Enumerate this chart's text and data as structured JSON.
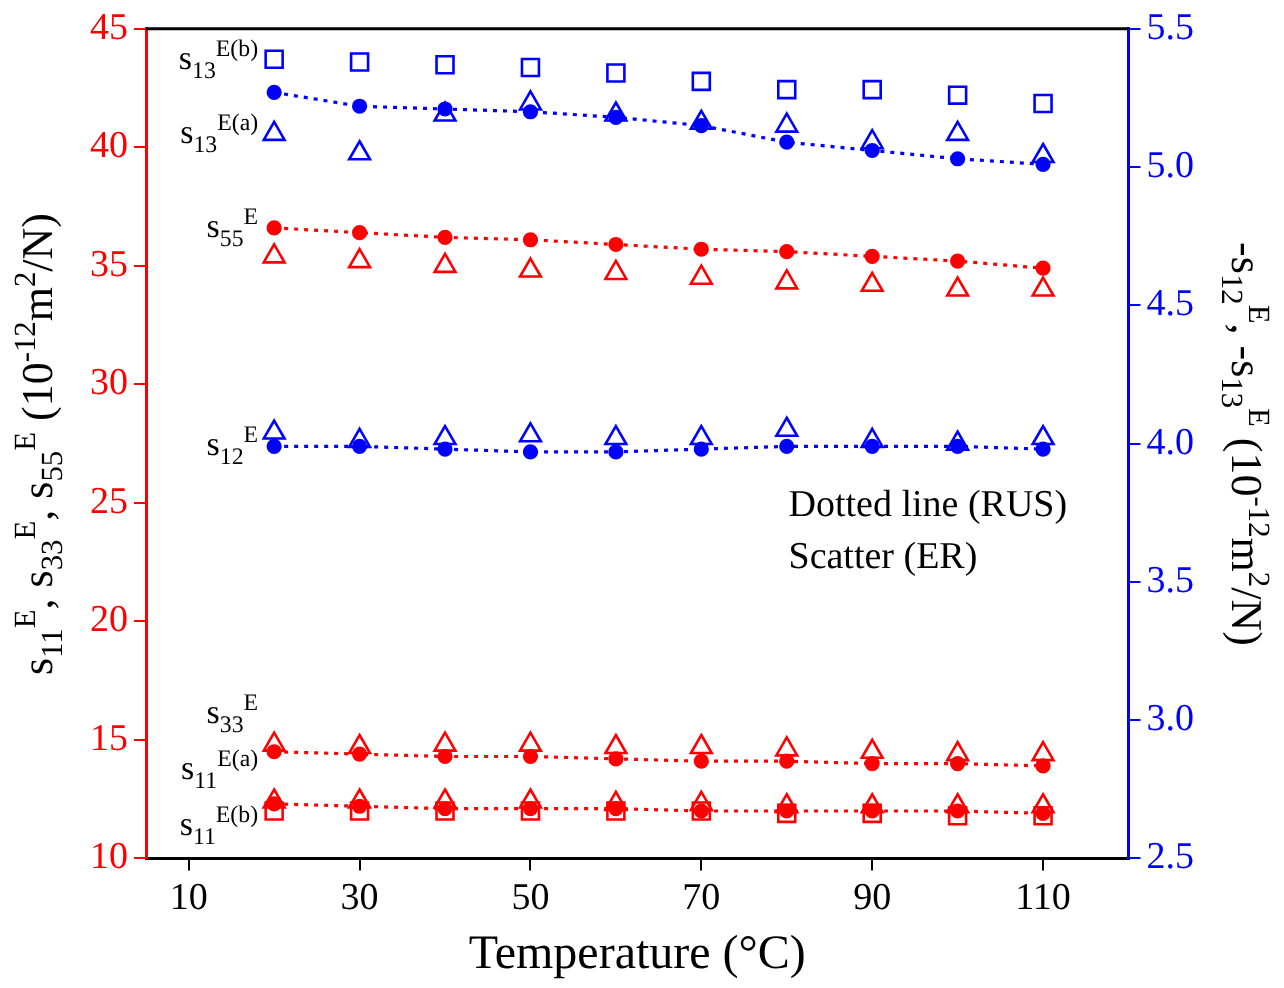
{
  "chart_data": {
    "type": "scatter",
    "xlabel": "Temperature (°C)",
    "ylabel": "s$_{11}$$^{E}$, s$_{33}$$^{E}$, s$_{55}$$^{E}$  (10$^{-12}$m$^{2}$/N)",
    "y2label": "-s$_{12}$$^{E}$, -s$_{13}$$^{E}$  (10$^{-12}$m$^{2}$/N)",
    "x": [
      20,
      30,
      40,
      50,
      60,
      70,
      80,
      90,
      100,
      110
    ],
    "xlim": [
      5,
      120
    ],
    "xticks": [
      10,
      30,
      50,
      70,
      90,
      110
    ],
    "ylim": [
      10,
      45
    ],
    "yticks": [
      10,
      15,
      20,
      25,
      30,
      35,
      40,
      45
    ],
    "y2lim": [
      2.5,
      5.5
    ],
    "y2ticks": [
      {
        "value": 2.5,
        "label": "2.5"
      },
      {
        "value": 3,
        "label": "3.0"
      },
      {
        "value": 3.5,
        "label": "3.5"
      },
      {
        "value": 4,
        "label": "4.0"
      },
      {
        "value": 4.5,
        "label": "4.5"
      },
      {
        "value": 5,
        "label": "5.0"
      },
      {
        "value": 5.5,
        "label": "5.5"
      }
    ],
    "grid": false,
    "legend": false,
    "series": [
      {
        "name": "s$_{13}$$^{E(b)}$",
        "axis": "y2",
        "color": "#0000ff",
        "marker": "square",
        "values": [
          5.39,
          5.38,
          5.37,
          5.36,
          5.34,
          5.31,
          5.28,
          5.28,
          5.26,
          5.23
        ]
      },
      {
        "type": "line",
        "axis": "y2",
        "color": "#0000ff",
        "marker": "circle",
        "line_style": "dotted",
        "values": [
          5.27,
          5.22,
          5.21,
          5.2,
          5.18,
          5.15,
          5.09,
          5.06,
          5.03,
          5.01
        ]
      },
      {
        "name": "s$_{13}$$^{E(a)}$",
        "axis": "y2",
        "color": "#0000ff",
        "marker": "triangle",
        "values": [
          5.12,
          5.05,
          5.19,
          5.23,
          5.19,
          5.16,
          5.15,
          5.09,
          5.12,
          5.04
        ]
      },
      {
        "name": "s$_{55}$$^{E}$",
        "type": "line",
        "color": "#ff0000",
        "marker": "circle",
        "line_style": "dotted",
        "values": [
          36.6,
          36.4,
          36.2,
          36.1,
          35.9,
          35.7,
          35.6,
          35.4,
          35.2,
          34.9
        ]
      },
      {
        "color": "#ff0000",
        "marker": "triangle",
        "values": [
          35.4,
          35.2,
          35.0,
          34.8,
          34.7,
          34.5,
          34.3,
          34.2,
          34.0,
          34.0
        ]
      },
      {
        "axis": "y2",
        "color": "#0000ff",
        "marker": "triangle",
        "values": [
          4.04,
          4.01,
          4.02,
          4.03,
          4.02,
          4.02,
          4.05,
          4.01,
          4.0,
          4.02
        ]
      },
      {
        "name": "s$_{12}$$^{E}$",
        "type": "line",
        "axis": "y2",
        "color": "#0000ff",
        "marker": "circle",
        "line_style": "dotted",
        "values": [
          3.99,
          3.99,
          3.98,
          3.97,
          3.97,
          3.98,
          3.99,
          3.99,
          3.99,
          3.98
        ]
      },
      {
        "name": "s$_{33}$$^{E}$",
        "color": "#ff0000",
        "marker": "triangle",
        "values": [
          14.8,
          14.7,
          14.8,
          14.8,
          14.7,
          14.7,
          14.6,
          14.5,
          14.4,
          14.4
        ]
      },
      {
        "type": "line",
        "color": "#ff0000",
        "marker": "circle",
        "line_style": "dotted",
        "values": [
          14.5,
          14.4,
          14.3,
          14.3,
          14.2,
          14.1,
          14.1,
          14.0,
          14.0,
          13.9
        ]
      },
      {
        "name": "s$_{11}$$^{E(a)}$",
        "color": "#ff0000",
        "marker": "triangle",
        "values": [
          12.4,
          12.4,
          12.4,
          12.4,
          12.3,
          12.3,
          12.2,
          12.2,
          12.2,
          12.2
        ]
      },
      {
        "type": "line",
        "color": "#ff0000",
        "marker": "circle",
        "line_style": "dotted",
        "values": [
          12.3,
          12.2,
          12.1,
          12.1,
          12.1,
          12.0,
          12.0,
          12.0,
          12.0,
          11.9
        ]
      },
      {
        "name": "s$_{11}$$^{E(b)}$",
        "color": "#ff0000",
        "marker": "square",
        "values": [
          12.0,
          12.0,
          12.0,
          12.0,
          12.0,
          12.0,
          11.9,
          11.9,
          11.8,
          11.8
        ]
      }
    ],
    "annotations": [
      "Dotted line (RUS)",
      "Scatter (ER)"
    ]
  }
}
